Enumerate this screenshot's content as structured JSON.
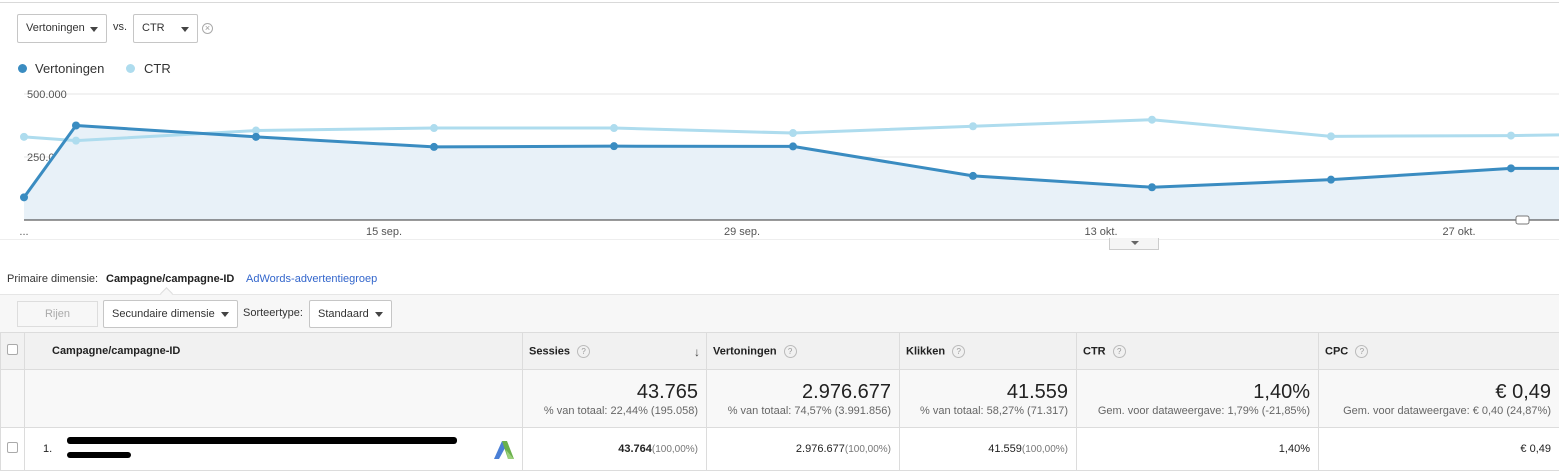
{
  "metrics": {
    "primary_metric": "Vertoningen",
    "vs_label": "vs.",
    "secondary_metric": "CTR"
  },
  "legend": [
    {
      "name": "Vertoningen",
      "color": "#3a8cc1"
    },
    {
      "name": "CTR",
      "color": "#aedcee"
    }
  ],
  "chart_data": {
    "type": "line",
    "y_tick_labels": [
      "500.000",
      "250.000"
    ],
    "x_tick_labels": [
      "...",
      "15 sep.",
      "29 sep.",
      "13 okt.",
      "27 okt."
    ],
    "ylim": [
      0,
      500000
    ],
    "series": [
      {
        "name": "Vertoningen",
        "color": "#3a8cc1",
        "values": [
          90000,
          375000,
          330000,
          290000,
          293000,
          292000,
          175000,
          130000,
          160000,
          205000,
          205000
        ]
      },
      {
        "name": "CTR",
        "color": "#aedcee",
        "values": [
          330000,
          315000,
          355000,
          365000,
          365000,
          345000,
          372000,
          398000,
          332000,
          335000,
          338000
        ]
      }
    ]
  },
  "dimension": {
    "label": "Primaire dimensie:",
    "active": "Campagne/campagne-ID",
    "link": "AdWords-advertentiegroep"
  },
  "toolbar": {
    "rows_button": "Rijen weergeven",
    "secondary_dimension": "Secundaire dimensie",
    "sort_label": "Sorteertype:",
    "sort_value": "Standaard"
  },
  "table": {
    "columns": [
      {
        "label": "Campagne/campagne-ID"
      },
      {
        "label": "Sessies"
      },
      {
        "label": "Vertoningen"
      },
      {
        "label": "Klikken"
      },
      {
        "label": "CTR"
      },
      {
        "label": "CPC"
      }
    ],
    "help_glyph": "?",
    "sort_glyph": "↓",
    "totals": [
      {
        "value": "43.765",
        "sub": "% van totaal: 22,44% (195.058)"
      },
      {
        "value": "2.976.677",
        "sub": "% van totaal: 74,57% (3.991.856)"
      },
      {
        "value": "41.559",
        "sub": "% van totaal: 58,27% (71.317)"
      },
      {
        "value": "1,40%",
        "sub": "Gem. voor dataweergave: 1,79% (-21,85%)"
      },
      {
        "value": "€ 0,49",
        "sub": "Gem. voor dataweergave: € 0,40 (24,87%)"
      }
    ],
    "rows": [
      {
        "index": "1.",
        "sessies": "43.764",
        "sessies_pct": "(100,00%)",
        "vertoningen": "2.976.677",
        "vertoningen_pct": "(100,00%)",
        "klikken": "41.559",
        "klikken_pct": "(100,00%)",
        "ctr": "1,40%",
        "cpc": "€ 0,49"
      }
    ]
  }
}
